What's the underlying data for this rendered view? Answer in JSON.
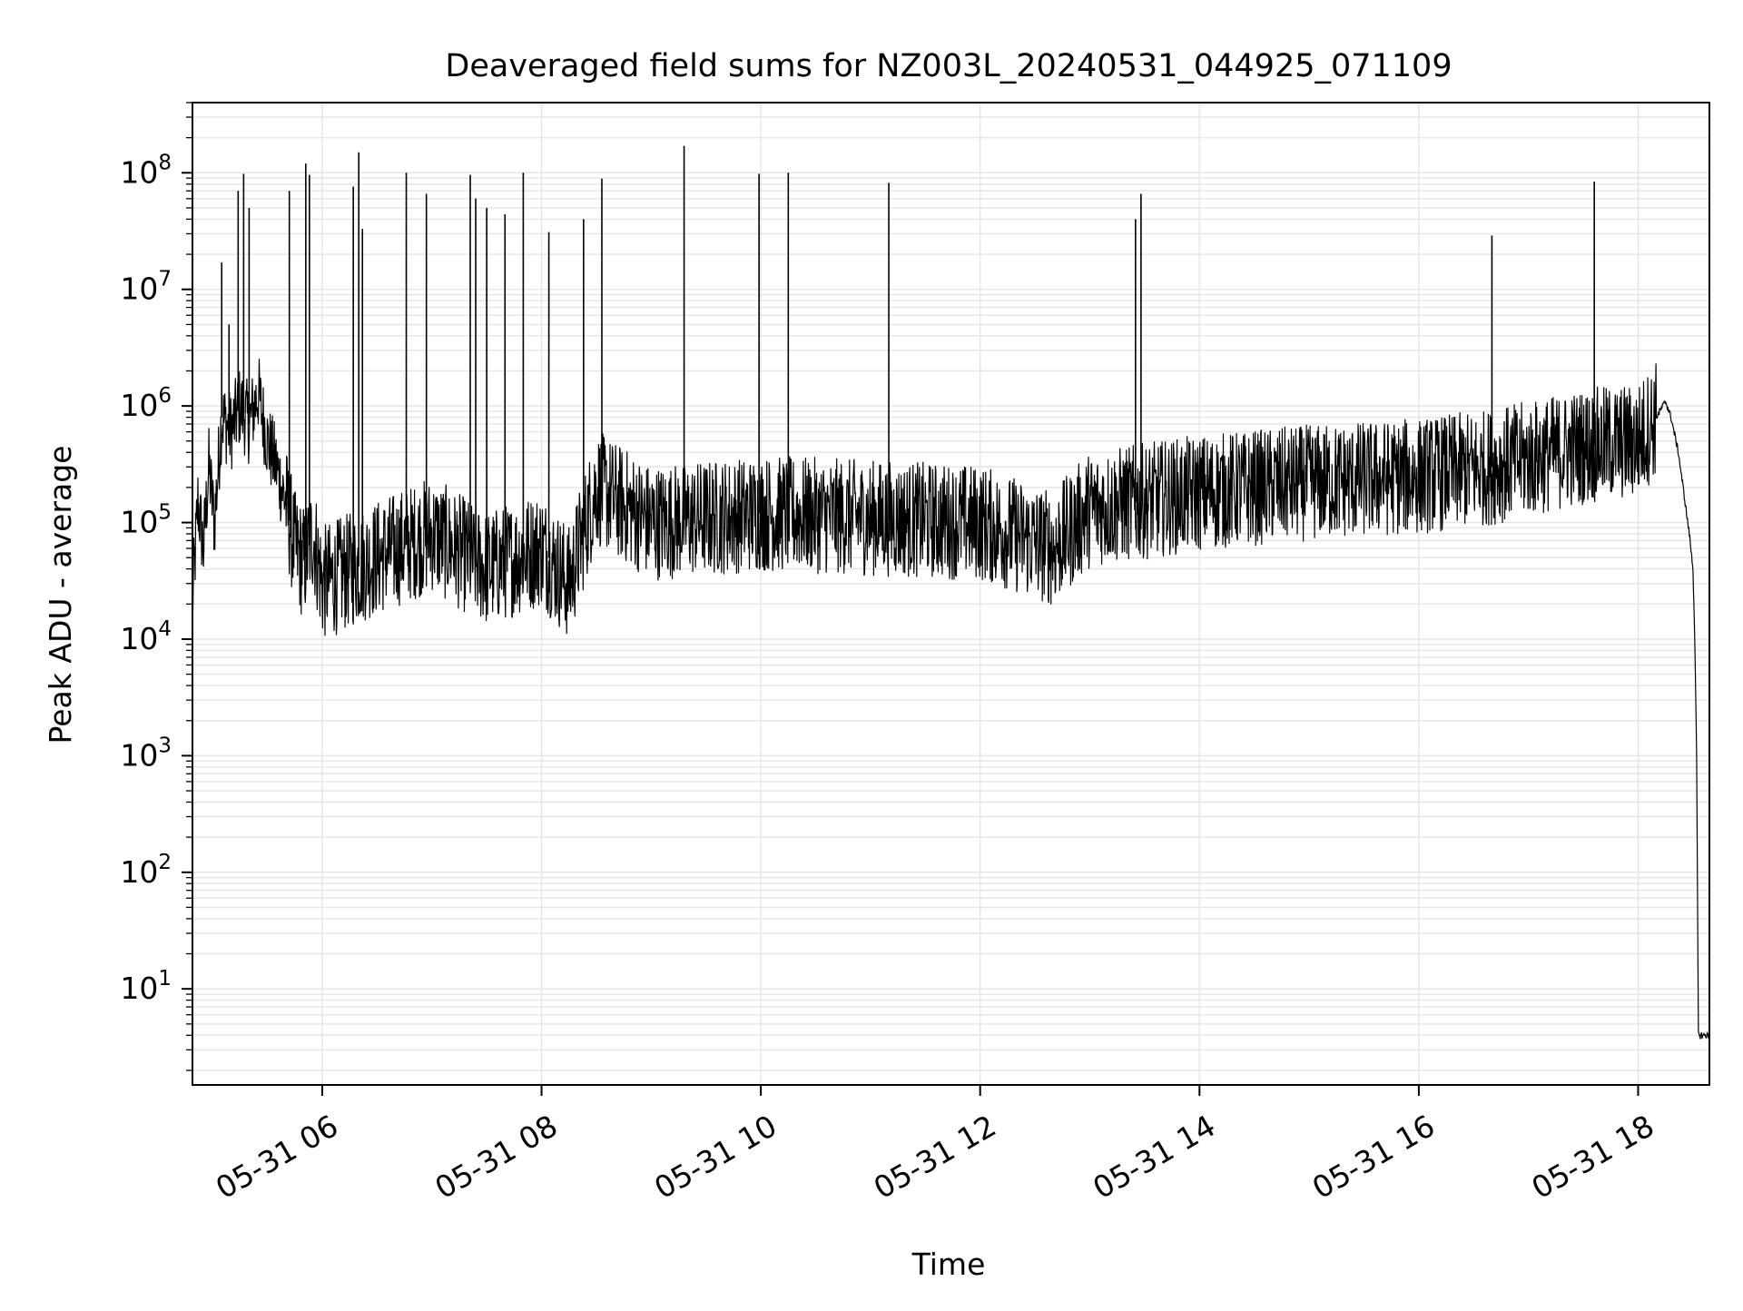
{
  "chart_data": {
    "type": "line",
    "title": "Deaveraged field sums for NZ003L_20240531_044925_071109",
    "xlabel": "Time",
    "ylabel": "Peak ADU - average",
    "yscale": "log",
    "ylim": [
      1.5,
      400000000
    ],
    "xlim": [
      "05-31 04:49",
      "05-31 18:39"
    ],
    "grid": true,
    "legend": "none",
    "line_color": "#000000",
    "x_ticks": [
      {
        "t": "05-31 06:00",
        "label": "05-31 06"
      },
      {
        "t": "05-31 08:00",
        "label": "05-31 08"
      },
      {
        "t": "05-31 10:00",
        "label": "05-31 10"
      },
      {
        "t": "05-31 12:00",
        "label": "05-31 12"
      },
      {
        "t": "05-31 14:00",
        "label": "05-31 14"
      },
      {
        "t": "05-31 16:00",
        "label": "05-31 16"
      },
      {
        "t": "05-31 18:00",
        "label": "05-31 18"
      }
    ],
    "y_ticks": [
      {
        "value": 10,
        "base": "10",
        "exp": "1"
      },
      {
        "value": 100,
        "base": "10",
        "exp": "2"
      },
      {
        "value": 1000,
        "base": "10",
        "exp": "3"
      },
      {
        "value": 10000,
        "base": "10",
        "exp": "4"
      },
      {
        "value": 100000,
        "base": "10",
        "exp": "5"
      },
      {
        "value": 1000000,
        "base": "10",
        "exp": "6"
      },
      {
        "value": 10000000,
        "base": "10",
        "exp": "7"
      },
      {
        "value": 100000000,
        "base": "10",
        "exp": "8"
      }
    ],
    "series": [
      {
        "points": [
          [
            "05-31 04:49",
            20000
          ],
          [
            "05-31 04:52",
            150000
          ],
          [
            "05-31 04:55",
            60000
          ],
          [
            "05-31 04:58",
            300000
          ],
          [
            "05-31 05:01",
            100000
          ],
          [
            "05-31 05:05",
            800000
          ],
          [
            "05-31 05:10",
            600000
          ],
          [
            "05-31 05:15",
            1000000
          ],
          [
            "05-31 05:20",
            700000
          ],
          [
            "05-31 05:25",
            1300000
          ],
          [
            "05-31 05:30",
            500000
          ],
          [
            "05-31 05:35",
            300000
          ],
          [
            "05-31 05:40",
            150000
          ],
          [
            "05-31 05:45",
            60000
          ],
          [
            "05-31 05:50",
            45000
          ],
          [
            "05-31 05:55",
            80000
          ],
          [
            "05-31 06:00",
            30000
          ],
          [
            "05-31 06:30",
            50000
          ],
          [
            "05-31 07:00",
            80000
          ],
          [
            "05-31 07:30",
            40000
          ],
          [
            "05-31 08:00",
            60000
          ],
          [
            "05-31 08:15",
            30000
          ],
          [
            "05-31 08:30",
            200000
          ],
          [
            "05-31 09:00",
            100000
          ],
          [
            "05-31 10:00",
            120000
          ],
          [
            "05-31 11:00",
            110000
          ],
          [
            "05-31 12:00",
            100000
          ],
          [
            "05-31 12:40",
            60000
          ],
          [
            "05-31 13:00",
            130000
          ],
          [
            "05-31 14:00",
            180000
          ],
          [
            "05-31 15:00",
            220000
          ],
          [
            "05-31 16:00",
            250000
          ],
          [
            "05-31 16:40",
            300000
          ],
          [
            "05-31 17:00",
            350000
          ],
          [
            "05-31 17:30",
            450000
          ],
          [
            "05-31 18:00",
            500000
          ],
          [
            "05-31 18:10",
            800000
          ],
          [
            "05-31 18:15",
            1100000
          ],
          [
            "05-31 18:18",
            800000
          ],
          [
            "05-31 18:22",
            400000
          ],
          [
            "05-31 18:25",
            180000
          ],
          [
            "05-31 18:28",
            80000
          ],
          [
            "05-31 18:30",
            40000
          ],
          [
            "05-31 18:31",
            10000
          ],
          [
            "05-31 18:32",
            1000
          ],
          [
            "05-31 18:33",
            4
          ],
          [
            "05-31 18:39",
            4
          ]
        ]
      }
    ],
    "spikes": [
      [
        "05-31 05:05",
        17000000
      ],
      [
        "05-31 05:09",
        5000000
      ],
      [
        "05-31 05:14",
        70000000
      ],
      [
        "05-31 05:17",
        98000000
      ],
      [
        "05-31 05:20",
        50000000
      ],
      [
        "05-31 05:42",
        70000000
      ],
      [
        "05-31 05:51",
        120000000
      ],
      [
        "05-31 05:53",
        96000000
      ],
      [
        "05-31 06:17",
        76000000
      ],
      [
        "05-31 06:20",
        150000000
      ],
      [
        "05-31 06:22",
        33000000
      ],
      [
        "05-31 06:46",
        100000000
      ],
      [
        "05-31 06:57",
        66000000
      ],
      [
        "05-31 07:21",
        96000000
      ],
      [
        "05-31 07:24",
        60000000
      ],
      [
        "05-31 07:30",
        50000000
      ],
      [
        "05-31 07:40",
        44000000
      ],
      [
        "05-31 07:50",
        100000000
      ],
      [
        "05-31 08:04",
        31000000
      ],
      [
        "05-31 08:23",
        40000000
      ],
      [
        "05-31 08:33",
        89000000
      ],
      [
        "05-31 09:18",
        170000000
      ],
      [
        "05-31 09:59",
        98000000
      ],
      [
        "05-31 10:15",
        100000000
      ],
      [
        "05-31 11:10",
        82000000
      ],
      [
        "05-31 13:25",
        40000000
      ],
      [
        "05-31 13:28",
        66000000
      ],
      [
        "05-31 16:40",
        29000000
      ],
      [
        "05-31 17:36",
        84000000
      ]
    ]
  }
}
